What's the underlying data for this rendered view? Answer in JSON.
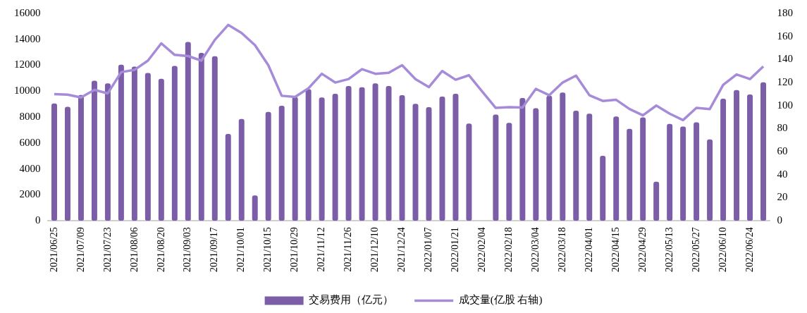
{
  "chart_data": {
    "type": "bar",
    "categories": [
      "2021/06/25",
      null,
      "2021/07/09",
      null,
      "2021/07/23",
      null,
      "2021/08/06",
      null,
      "2021/08/20",
      null,
      "2021/09/03",
      null,
      "2021/09/17",
      null,
      "2021/10/01",
      null,
      "2021/10/15",
      null,
      "2021/10/29",
      null,
      "2021/11/12",
      null,
      "2021/11/26",
      null,
      "2021/12/10",
      null,
      "2021/12/24",
      null,
      "2022/01/07",
      null,
      "2022/01/21",
      null,
      "2022/02/04",
      null,
      "2022/02/18",
      null,
      "2022/03/04",
      null,
      "2022/03/18",
      null,
      "2022/04/01",
      null,
      "2022/04/15",
      null,
      "2022/04/29",
      null,
      "2022/05/13",
      null,
      "2022/05/27",
      null,
      "2022/06/10",
      null,
      "2022/06/24",
      null
    ],
    "series": [
      {
        "name": "交易费用（亿元）",
        "color": "#7b5ea7",
        "values": [
          9050,
          8800,
          9700,
          10800,
          10600,
          12050,
          11900,
          11400,
          10950,
          11950,
          13800,
          12950,
          12700,
          6700,
          7850,
          1950,
          8400,
          8870,
          9560,
          10150,
          9510,
          9800,
          10400,
          10310,
          10600,
          10400,
          9690,
          9030,
          8770,
          9580,
          9800,
          7500,
          null,
          8200,
          7560,
          9470,
          8680,
          9650,
          9890,
          8490,
          8270,
          5010,
          8050,
          7090,
          7980,
          3020,
          7470,
          7270,
          7600,
          6280,
          9420,
          10090,
          9740,
          10690
        ]
      },
      {
        "name": "成交量(亿股 右轴)",
        "type": "line",
        "axis": "y2",
        "color": "#a58bd8",
        "values": [
          110,
          109.5,
          107,
          113.6,
          110.6,
          129,
          131,
          139,
          154,
          144,
          143,
          139,
          157,
          170,
          163,
          152.5,
          135,
          108.5,
          107.5,
          115,
          127.6,
          120,
          123,
          131.6,
          127.6,
          128.4,
          135,
          123,
          116,
          130,
          122.4,
          126.3,
          112,
          98,
          98.7,
          98.3,
          114.5,
          109,
          120,
          126,
          109,
          104,
          105,
          97,
          91.5,
          100,
          93,
          87.4,
          98,
          97,
          118,
          127,
          123,
          134
        ]
      }
    ],
    "ylim": [
      0,
      16000
    ],
    "yticks": [
      0,
      2000,
      4000,
      6000,
      8000,
      10000,
      12000,
      14000,
      16000
    ],
    "y2lim": [
      0,
      180
    ],
    "y2ticks": [
      0,
      20,
      40,
      60,
      80,
      100,
      120,
      140,
      160,
      180
    ],
    "legend": "bottom",
    "marker": "none"
  }
}
